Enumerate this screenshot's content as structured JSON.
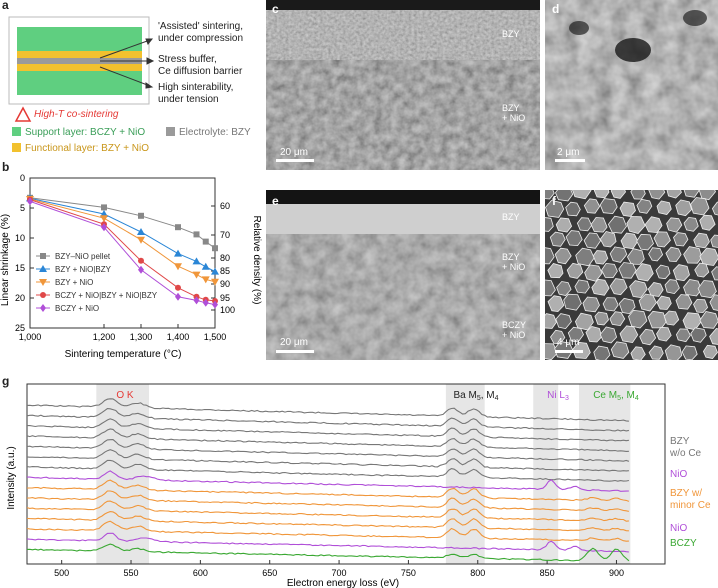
{
  "panel_labels": {
    "a": "a",
    "b": "b",
    "c": "c",
    "d": "d",
    "e": "e",
    "f": "f",
    "g": "g"
  },
  "schematic": {
    "annotations": [
      "'Assisted' sintering,",
      "under compression",
      "Stress buffer,",
      "Ce diffusion barrier",
      "High sinterability,",
      "under tension"
    ],
    "cosinter": "High-T co-sintering",
    "legend": {
      "support": "Support layer: BCZY + NiO",
      "electrolyte": "Electrolyte: BZY",
      "functional": "Functional layer: BZY + NiO"
    },
    "colors": {
      "support": "#5fcf80",
      "functional": "#f2c12e",
      "electrolyte": "#9a9a9a",
      "warning": "#e53935"
    }
  },
  "micrographs": {
    "c": {
      "labels": [
        "BZY",
        "BZY",
        "+ NiO"
      ],
      "scale": "20 μm"
    },
    "d": {
      "scale": "2 μm"
    },
    "e": {
      "labels": [
        "BZY",
        "BZY",
        "+ NiO",
        "BCZY",
        "+ NiO"
      ],
      "scale": "20 μm"
    },
    "f": {
      "scale": "4 μm"
    }
  },
  "chart_data": [
    {
      "type": "line",
      "panel": "b",
      "xlabel": "Sintering temperature (°C)",
      "ylabel": "Linear shrinkage (%)",
      "y2label": "Relative density (%)",
      "x_ticks": [
        "1,000",
        "1,200",
        "1,300",
        "1,400",
        "1,500"
      ],
      "y_ticks": [
        "0",
        "5",
        "10",
        "15",
        "20",
        "25"
      ],
      "y2_ticks": [
        "60",
        "70",
        "80",
        "85",
        "90",
        "95",
        "100"
      ],
      "xlim": [
        1000,
        1500
      ],
      "ylim": [
        0,
        25
      ],
      "y_inverted": true,
      "series": [
        {
          "name": "BZY–NiO pellet",
          "color": "#888888",
          "marker": "square",
          "x": [
            1000,
            1200,
            1300,
            1400,
            1450,
            1475,
            1500
          ],
          "y": [
            3.3,
            4.9,
            6.3,
            8.2,
            9.4,
            10.6,
            11.7
          ]
        },
        {
          "name": "BZY + NiO|BZY",
          "color": "#2a86d6",
          "marker": "triangle-up",
          "x": [
            1000,
            1200,
            1300,
            1400,
            1450,
            1475,
            1500
          ],
          "y": [
            3.4,
            6.0,
            9.0,
            12.6,
            13.9,
            14.8,
            15.6
          ]
        },
        {
          "name": "BZY + NiO",
          "color": "#f0963a",
          "marker": "triangle-down",
          "x": [
            1000,
            1200,
            1300,
            1400,
            1450,
            1475,
            1500
          ],
          "y": [
            3.5,
            6.7,
            10.3,
            14.7,
            16.1,
            16.9,
            17.3
          ]
        },
        {
          "name": "BCZY + NiO|BZY + NiO|BZY",
          "color": "#e04848",
          "marker": "circle",
          "x": [
            1000,
            1200,
            1300,
            1400,
            1450,
            1475,
            1500
          ],
          "y": [
            3.6,
            7.7,
            13.8,
            18.3,
            19.8,
            20.3,
            20.5
          ]
        },
        {
          "name": "BCZY + NiO",
          "color": "#b04fd8",
          "marker": "diamond",
          "x": [
            1000,
            1200,
            1300,
            1400,
            1450,
            1475,
            1500
          ],
          "y": [
            3.9,
            8.2,
            15.3,
            19.8,
            20.4,
            20.8,
            21.1
          ]
        }
      ]
    },
    {
      "type": "line",
      "panel": "g",
      "xlabel": "Electron energy loss (eV)",
      "ylabel": "Intensity (a.u.)",
      "x_ticks": [
        "500",
        "550",
        "600",
        "650",
        "700",
        "750",
        "800",
        "850",
        "900"
      ],
      "xlim": [
        475,
        935
      ],
      "edges": [
        {
          "name": "O K",
          "range": [
            525,
            563
          ],
          "color": "#e53935"
        },
        {
          "name": "Ba M5, M4",
          "range": [
            777,
            805
          ],
          "color": "#222222"
        },
        {
          "name": "Ni L3",
          "range": [
            840,
            858
          ],
          "color": "#b04fd8"
        },
        {
          "name": "Ce M5, M4",
          "range": [
            873,
            910
          ],
          "color": "#3aa832"
        }
      ],
      "groups": [
        {
          "name": "BZY w/o Ce",
          "color": "#777777",
          "count": 7,
          "profile": "bzy"
        },
        {
          "name": "NiO",
          "color": "#b04fd8",
          "count": 1,
          "profile": "nio"
        },
        {
          "name": "BZY w/ minor Ce",
          "color": "#f0963a",
          "count": 5,
          "profile": "bzyce"
        },
        {
          "name": "NiO",
          "color": "#b04fd8",
          "count": 1,
          "profile": "nio"
        },
        {
          "name": "BCZY",
          "color": "#3aa832",
          "count": 1,
          "profile": "bczy"
        }
      ]
    }
  ],
  "g_edge_labels": {
    "ok": "O K",
    "ba": "Ba M",
    "ba_sub1": "5",
    "ba_mid": ", M",
    "ba_sub2": "4",
    "ni": "Ni L",
    "ni_sub": "3",
    "ce": "Ce M",
    "ce_sub1": "5",
    "ce_mid": ", M",
    "ce_sub2": "4"
  },
  "g_group_labels": {
    "bzy1": "BZY",
    "bzy2": "w/o Ce",
    "nio1": "NiO",
    "bzyce1": "BZY w/",
    "bzyce2": "minor Ce",
    "nio2": "NiO",
    "bczy": "BCZY"
  }
}
